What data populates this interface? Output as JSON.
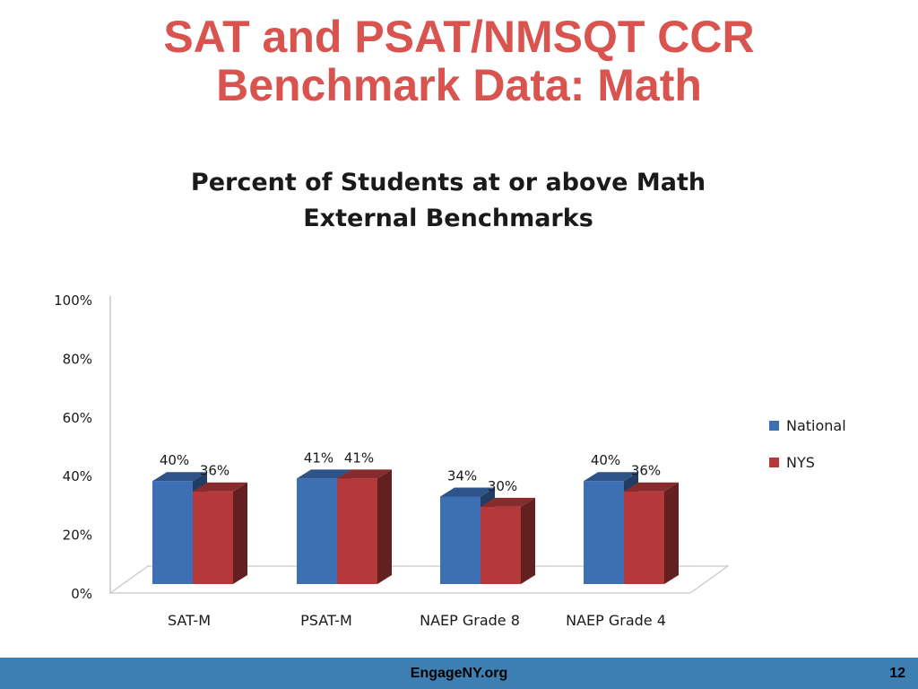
{
  "slide": {
    "title_line1": "SAT and PSAT/NMSQT CCR",
    "title_line2": "Benchmark Data: Math"
  },
  "footer": {
    "site": "EngageNY.org",
    "page_number": "12",
    "bar_color": "#3b7fb3"
  },
  "chart_data": {
    "type": "bar",
    "title_line1": "Percent of Students at or above Math",
    "title_line2": "External Benchmarks",
    "categories": [
      "SAT-M",
      "PSAT-M",
      "NAEP Grade 8",
      "NAEP Grade 4"
    ],
    "series": [
      {
        "name": "National",
        "values": [
          40,
          41,
          34,
          40
        ],
        "labels": [
          "40%",
          "41%",
          "34%",
          "40%"
        ],
        "color": "#3d6fb5"
      },
      {
        "name": "NYS",
        "values": [
          36,
          41,
          30,
          36
        ],
        "labels": [
          "36%",
          "41%",
          "30%",
          "36%"
        ],
        "color": "#b5393a"
      }
    ],
    "yticks": [
      "0%",
      "20%",
      "40%",
      "60%",
      "80%",
      "100%"
    ],
    "ylim": [
      0,
      100
    ],
    "legend": "right",
    "grid": false,
    "three_d": true
  }
}
